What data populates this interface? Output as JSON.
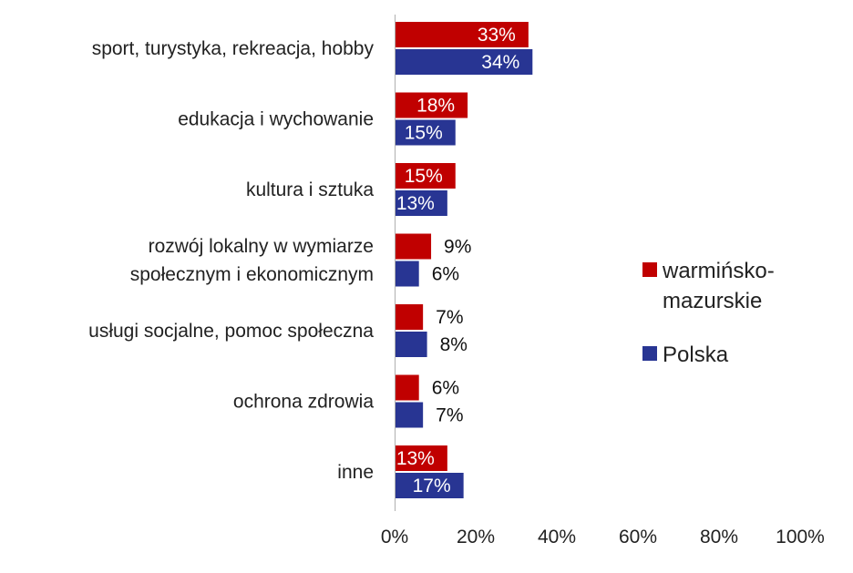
{
  "chart_data": {
    "type": "bar",
    "orientation": "horizontal",
    "categories": [
      [
        "sport, turystyka, rekreacja, hobby"
      ],
      [
        "edukacja i wychowanie"
      ],
      [
        "kultura i sztuka"
      ],
      [
        "rozwój lokalny w wymiarze",
        "społecznym i ekonomicznym"
      ],
      [
        "usługi socjalne, pomoc społeczna"
      ],
      [
        "ochrona zdrowia"
      ],
      [
        "inne"
      ]
    ],
    "series": [
      {
        "name": [
          "warmińsko-",
          "mazurskie"
        ],
        "color": "#C00000",
        "values": [
          33,
          18,
          15,
          9,
          7,
          6,
          13
        ],
        "labels": [
          "33%",
          "18%",
          "15%",
          "9%",
          "7%",
          "6%",
          "13%"
        ]
      },
      {
        "name": [
          "Polska"
        ],
        "color": "#283593",
        "values": [
          34,
          15,
          13,
          6,
          8,
          7,
          17
        ],
        "labels": [
          "34%",
          "15%",
          "13%",
          "6%",
          "8%",
          "7%",
          "17%"
        ]
      }
    ],
    "xlim": [
      0,
      100
    ],
    "xticks": [
      0,
      20,
      40,
      60,
      80,
      100
    ],
    "xtick_labels": [
      "0%",
      "20%",
      "40%",
      "60%",
      "80%",
      "100%"
    ],
    "grid": false,
    "legend_position": "right"
  }
}
